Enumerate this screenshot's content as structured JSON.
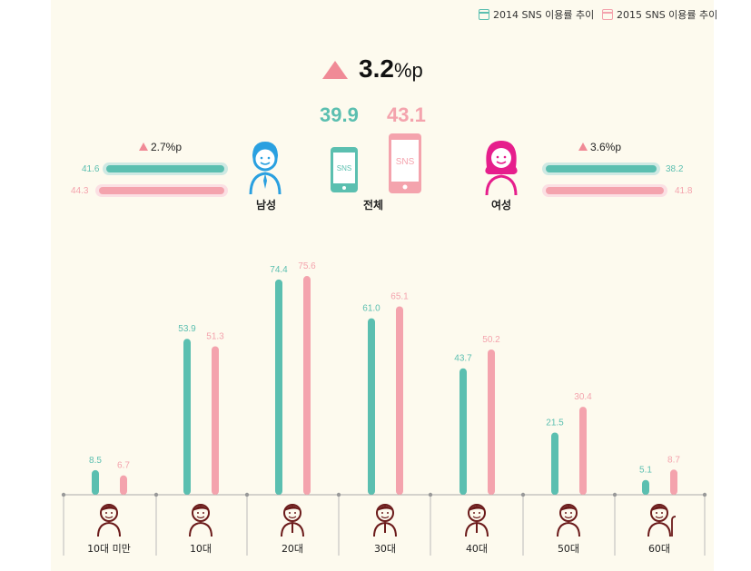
{
  "legend": {
    "y2014": {
      "label": "2014 SNS 이용률 추이",
      "color": "#5bbfb0"
    },
    "y2015": {
      "label": "2015 SNS 이용률 추이",
      "color": "#f4a3ad"
    }
  },
  "summary": {
    "total_diff": {
      "number": "3.2",
      "unit": "%p"
    },
    "total_2014": "39.9",
    "total_2015": "43.1",
    "total_label": "전체",
    "male": {
      "label": "남성",
      "diff": "2.7%p",
      "v2014": "41.6",
      "v2015": "44.3"
    },
    "female": {
      "label": "여성",
      "diff": "3.6%p",
      "v2014": "38.2",
      "v2015": "41.8"
    },
    "phone_text": "SNS"
  },
  "colors": {
    "teal": "#5bbfb0",
    "pink": "#f4a3ad",
    "triangle": "#f08a96",
    "male_icon": "#2aa0e0",
    "female_icon": "#e61e8c",
    "age_icon": "#6b1a1a"
  },
  "chart_data": {
    "type": "bar",
    "categories": [
      "10대 미만",
      "10대",
      "20대",
      "30대",
      "40대",
      "50대",
      "60대"
    ],
    "series": [
      {
        "name": "2014 SNS 이용률 추이",
        "values": [
          8.5,
          53.9,
          74.4,
          61.0,
          43.7,
          21.5,
          5.1
        ],
        "labels": [
          "8.5",
          "53.9",
          "74.4",
          "61.0",
          "43.7",
          "21.5",
          "5.1"
        ]
      },
      {
        "name": "2015 SNS 이용률 추이",
        "values": [
          6.7,
          51.3,
          75.6,
          65.1,
          50.2,
          30.4,
          8.7
        ],
        "labels": [
          "6.7",
          "51.3",
          "75.6",
          "65.1",
          "50.2",
          "30.4",
          "8.7"
        ]
      }
    ],
    "ylim": [
      0,
      80
    ],
    "grid": false
  }
}
